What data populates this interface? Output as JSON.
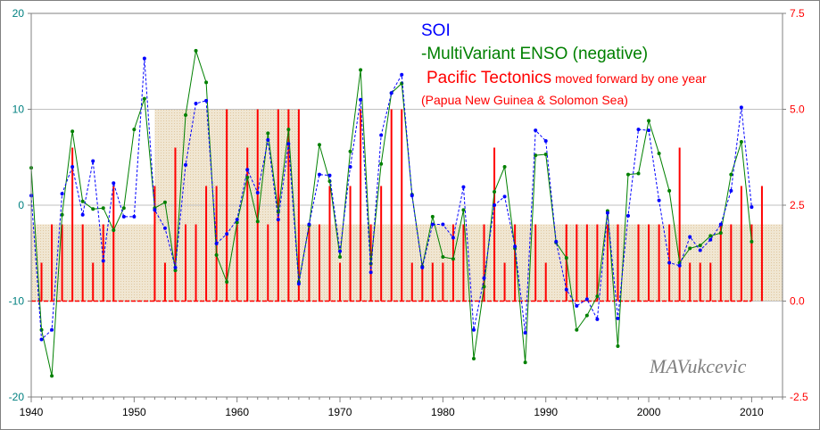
{
  "chart_data": {
    "type": "line",
    "title_lines": {
      "soi": "SOI",
      "mei": "-MultiVariant ENSO (negative)",
      "tect_main": "Pacific Tectonics",
      "tect_sub": " moved forward by one year",
      "region": "(Papua New Guinea & Solomon Sea)"
    },
    "signature": "MAVukcevic",
    "xlim": [
      1940,
      2013
    ],
    "ylim_left": [
      -20,
      20
    ],
    "ylim_right": [
      -2.5,
      7.5
    ],
    "x_ticks": [
      1940,
      1950,
      1960,
      1970,
      1980,
      1990,
      2000,
      2010
    ],
    "y_ticks_left": [
      "20",
      "10",
      "0",
      "-10",
      "-20"
    ],
    "y_ticks_right": [
      "7.5",
      "5.0",
      "2.5",
      "0.0",
      "-2.5"
    ],
    "grid": "horizontal",
    "colors": {
      "soi": "#0000FF",
      "mei": "#008000",
      "tect": "#FF0000",
      "shade": "#F0E6D2",
      "grid": "#C0C0C0"
    },
    "series": [
      {
        "name": "SOI",
        "axis": "left",
        "x": [
          1940,
          1941,
          1942,
          1943,
          1944,
          1945,
          1946,
          1947,
          1948,
          1949,
          1950,
          1951,
          1952,
          1953,
          1954,
          1955,
          1956,
          1957,
          1958,
          1959,
          1960,
          1961,
          1962,
          1963,
          1964,
          1965,
          1966,
          1967,
          1968,
          1969,
          1970,
          1971,
          1972,
          1973,
          1974,
          1975,
          1976,
          1977,
          1978,
          1979,
          1980,
          1981,
          1982,
          1983,
          1984,
          1985,
          1986,
          1987,
          1988,
          1989,
          1990,
          1991,
          1992,
          1993,
          1994,
          1995,
          1996,
          1997,
          1998,
          1999,
          2000,
          2001,
          2002,
          2003,
          2004,
          2005,
          2006,
          2007,
          2008,
          2009,
          2010
        ],
        "values": [
          1,
          -14,
          -13,
          1.2,
          4,
          -1,
          4.6,
          -5.8,
          2.3,
          -1.2,
          -1.2,
          15.3,
          -0.5,
          -2.4,
          -6.5,
          4.2,
          10.6,
          10.9,
          -4,
          -3,
          -1.5,
          3.7,
          1.3,
          6.8,
          -1.5,
          6.4,
          -8.2,
          -2,
          3.2,
          3.1,
          -4.8,
          4,
          11,
          -7,
          7.3,
          11.7,
          13.6,
          1,
          -6.5,
          -2,
          -2,
          -3.4,
          1.9,
          -13,
          -7.6,
          0,
          0.9,
          -4.3,
          -13.3,
          7.8,
          6.7,
          -3.8,
          -8.8,
          -10.5,
          -9.8,
          -11.9,
          -0.8,
          -11.8,
          -1.1,
          7.9,
          7.8,
          0.5,
          -6,
          -6.3,
          -3.3,
          -4.7,
          -3.6,
          -2,
          1.5,
          10.2,
          -0.2
        ]
      },
      {
        "name": "-MultiVariant ENSO (negative)",
        "axis": "left",
        "x": [
          1940,
          1941,
          1942,
          1943,
          1944,
          1945,
          1946,
          1947,
          1948,
          1949,
          1950,
          1951,
          1952,
          1953,
          1954,
          1955,
          1956,
          1957,
          1958,
          1959,
          1960,
          1961,
          1962,
          1963,
          1964,
          1965,
          1966,
          1967,
          1968,
          1969,
          1970,
          1971,
          1972,
          1973,
          1974,
          1975,
          1976,
          1977,
          1978,
          1979,
          1980,
          1981,
          1982,
          1983,
          1984,
          1985,
          1986,
          1987,
          1988,
          1989,
          1990,
          1991,
          1992,
          1993,
          1994,
          1995,
          1996,
          1997,
          1998,
          1999,
          2000,
          2001,
          2002,
          2003,
          2004,
          2005,
          2006,
          2007,
          2008,
          2009,
          2010
        ],
        "values": [
          3.9,
          -13,
          -17.8,
          -1,
          7.7,
          0.4,
          -0.4,
          -0.3,
          -2.6,
          -0.3,
          7.9,
          11.1,
          -0.3,
          0.3,
          -6.8,
          9.4,
          16.1,
          12.8,
          -5.2,
          -8,
          -1.8,
          2.9,
          -1.7,
          7.5,
          -0.7,
          7.9,
          -8,
          -2.1,
          6.3,
          2.5,
          -5.4,
          5.6,
          14.1,
          -6.1,
          4.3,
          11.7,
          12.7,
          1.1,
          -6.4,
          -1.2,
          -5.4,
          -5.6,
          -0.5,
          -16,
          -8.5,
          1.4,
          4,
          -4.5,
          -16.4,
          5.2,
          5.3,
          -3.9,
          -5.5,
          -13,
          -11.5,
          -9.5,
          -0.6,
          -14.7,
          3.2,
          3.3,
          8.8,
          5.4,
          1.5,
          -6,
          -4.5,
          -4.2,
          -3.2,
          -2.9,
          3.2,
          6.6,
          -3.8
        ]
      },
      {
        "name": "Pacific Tectonics",
        "axis": "right",
        "x": [
          1941,
          1942,
          1943,
          1944,
          1945,
          1946,
          1947,
          1948,
          1952,
          1953,
          1954,
          1955,
          1956,
          1957,
          1958,
          1959,
          1960,
          1961,
          1962,
          1963,
          1964,
          1965,
          1966,
          1967,
          1968,
          1969,
          1970,
          1971,
          1972,
          1973,
          1974,
          1975,
          1976,
          1977,
          1978,
          1979,
          1980,
          1981,
          1982,
          1984,
          1985,
          1986,
          1987,
          1989,
          1990,
          1992,
          1993,
          1994,
          1995,
          1996,
          1997,
          1999,
          2000,
          2001,
          2002,
          2003,
          2004,
          2005,
          2006,
          2007,
          2008,
          2009,
          2010,
          2011
        ],
        "values": [
          1,
          2,
          2,
          4,
          2,
          1,
          2,
          3,
          3,
          1,
          4,
          2,
          2,
          3,
          3,
          5,
          2,
          4,
          5,
          2,
          5,
          5,
          5,
          2,
          2,
          3,
          1,
          3,
          5,
          2,
          3,
          5,
          5,
          1,
          1,
          1,
          1,
          2,
          2,
          2,
          4,
          1,
          2,
          2,
          1,
          2,
          2,
          2,
          2,
          2,
          2,
          2,
          2,
          2,
          2,
          4,
          1,
          1,
          1,
          2,
          2,
          3,
          2,
          3
        ]
      }
    ],
    "shaded_bands": [
      {
        "x": [
          1940,
          1952
        ],
        "y": [
          0,
          2
        ]
      },
      {
        "x": [
          1952,
          1966
        ],
        "y": [
          0,
          5
        ]
      },
      {
        "x": [
          1966,
          2013
        ],
        "y": [
          0,
          2
        ]
      }
    ]
  }
}
